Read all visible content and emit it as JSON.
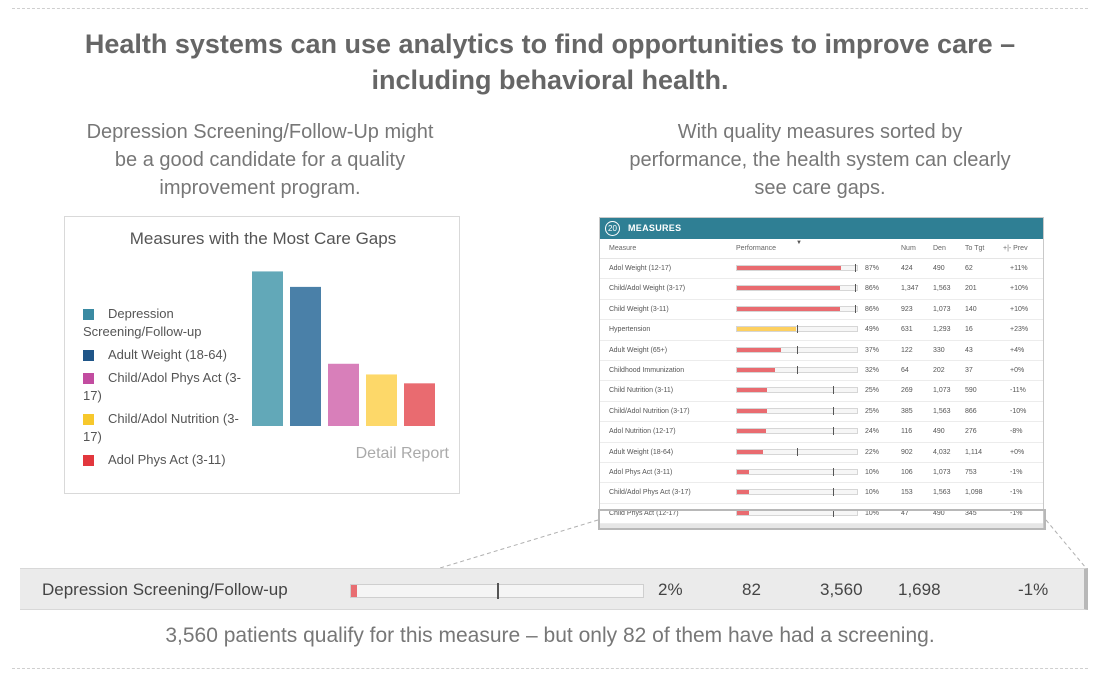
{
  "headline": {
    "line1": "Health systems can use analytics to find opportunities to improve care –",
    "line2": "including behavioral health."
  },
  "left_text": [
    "Depression Screening/Follow-Up might",
    "be a good candidate for a quality",
    "improvement program."
  ],
  "right_text": [
    "With quality measures sorted by",
    "performance, the health system can clearly",
    "see care gaps."
  ],
  "chart_card": {
    "title": "Measures with the Most Care Gaps",
    "detail_link": "Detail Report"
  },
  "chart_data": {
    "type": "bar",
    "title": "Measures with the Most Care Gaps",
    "categories": [
      "Depression Screening/Follow-up",
      "Adult Weight (18-64)",
      "Child/Adol Phys Act (3-17)",
      "Child/Adol Nutrition (3-17)",
      "Adol Phys Act (3-11)"
    ],
    "values": [
      3478,
      3130,
      1400,
      1160,
      960
    ],
    "colors": [
      "#62a8b8",
      "#4a80a8",
      "#d87fba",
      "#fdd869",
      "#e96b70"
    ],
    "legend_colors": [
      "#3a8aa2",
      "#1f5588",
      "#c24ca0",
      "#f7c82c",
      "#e2373d"
    ],
    "ylim": [
      0,
      3600
    ],
    "grid": false,
    "legend_position": "left"
  },
  "table": {
    "count": "20",
    "header_label": "MEASURES",
    "columns": {
      "measure": "Measure",
      "performance": "Performance",
      "num": "Num",
      "den": "Den",
      "to_tgt": "To Tgt",
      "prev": "+|- Prev"
    },
    "rows": [
      {
        "measure": "Adol Weight (12-17)",
        "perf": 87,
        "pct": "87%",
        "target": 98,
        "color": "#e96b70",
        "num": "424",
        "den": "490",
        "to_tgt": "62",
        "prev": "+11%"
      },
      {
        "measure": "Child/Adol Weight (3-17)",
        "perf": 86,
        "pct": "86%",
        "target": 98,
        "color": "#e96b70",
        "num": "1,347",
        "den": "1,563",
        "to_tgt": "201",
        "prev": "+10%"
      },
      {
        "measure": "Child Weight (3-11)",
        "perf": 86,
        "pct": "86%",
        "target": 98,
        "color": "#e96b70",
        "num": "923",
        "den": "1,073",
        "to_tgt": "140",
        "prev": "+10%"
      },
      {
        "measure": "Hypertension",
        "perf": 49,
        "pct": "49%",
        "target": 50,
        "color": "#fdd060",
        "num": "631",
        "den": "1,293",
        "to_tgt": "16",
        "prev": "+23%"
      },
      {
        "measure": "Adult Weight (65+)",
        "perf": 37,
        "pct": "37%",
        "target": 50,
        "color": "#e96b70",
        "num": "122",
        "den": "330",
        "to_tgt": "43",
        "prev": "+4%"
      },
      {
        "measure": "Childhood Immunization",
        "perf": 32,
        "pct": "32%",
        "target": 50,
        "color": "#e96b70",
        "num": "64",
        "den": "202",
        "to_tgt": "37",
        "prev": "+0%"
      },
      {
        "measure": "Child Nutrition (3-11)",
        "perf": 25,
        "pct": "25%",
        "target": 80,
        "color": "#e96b70",
        "num": "269",
        "den": "1,073",
        "to_tgt": "590",
        "prev": "-11%"
      },
      {
        "measure": "Child/Adol Nutrition (3-17)",
        "perf": 25,
        "pct": "25%",
        "target": 80,
        "color": "#e96b70",
        "num": "385",
        "den": "1,563",
        "to_tgt": "866",
        "prev": "-10%"
      },
      {
        "measure": "Adol Nutrition (12-17)",
        "perf": 24,
        "pct": "24%",
        "target": 80,
        "color": "#e96b70",
        "num": "116",
        "den": "490",
        "to_tgt": "276",
        "prev": "-8%"
      },
      {
        "measure": "Adult Weight (18-64)",
        "perf": 22,
        "pct": "22%",
        "target": 50,
        "color": "#e96b70",
        "num": "902",
        "den": "4,032",
        "to_tgt": "1,114",
        "prev": "+0%"
      },
      {
        "measure": "Adol Phys Act (3-11)",
        "perf": 10,
        "pct": "10%",
        "target": 80,
        "color": "#e96b70",
        "num": "106",
        "den": "1,073",
        "to_tgt": "753",
        "prev": "-1%"
      },
      {
        "measure": "Child/Adol Phys Act (3-17)",
        "perf": 10,
        "pct": "10%",
        "target": 80,
        "color": "#e96b70",
        "num": "153",
        "den": "1,563",
        "to_tgt": "1,098",
        "prev": "-1%"
      },
      {
        "measure": "Child Phys Act (12-17)",
        "perf": 10,
        "pct": "10%",
        "target": 80,
        "color": "#e96b70",
        "num": "47",
        "den": "490",
        "to_tgt": "345",
        "prev": "-1%"
      },
      {
        "measure": "Depression Screening/Follow-up",
        "perf": 2,
        "pct": "2%",
        "target": 50,
        "color": "#e96b70",
        "num": "82",
        "den": "3,560",
        "to_tgt": "1,698",
        "prev": "-1%"
      }
    ]
  },
  "zoom_row": {
    "measure": "Depression Screening/Follow-up",
    "perf": 2,
    "pct": "2%",
    "target": 50,
    "num": "82",
    "den": "3,560",
    "to_tgt": "1,698",
    "prev": "-1%"
  },
  "caption": "3,560 patients qualify for this measure – but only 82 of them have had a screening."
}
